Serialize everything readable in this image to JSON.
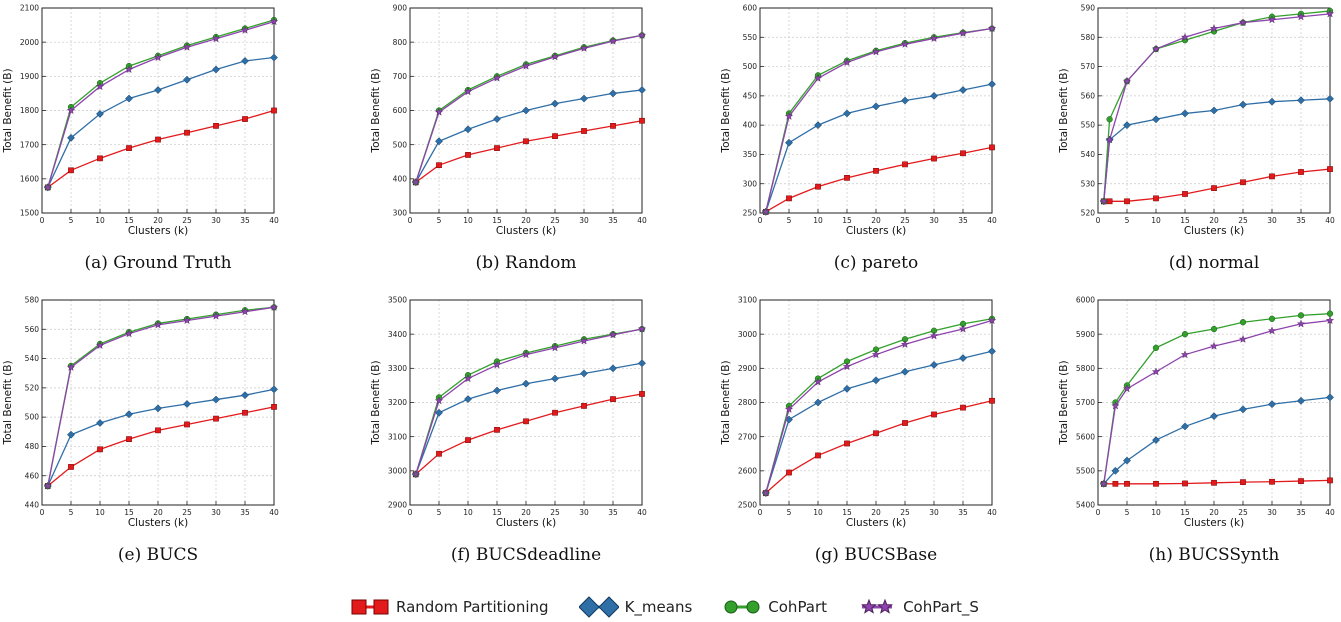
{
  "colors": {
    "random_partitioning": "#e31a1c",
    "k_means": "#2f6fa7",
    "cohpart": "#33a02c",
    "cohpart_s": "#8e44ad",
    "grid": "#c8c8c8"
  },
  "legend": [
    {
      "label": "Random Partitioning",
      "marker": "square",
      "color": "#e31a1c"
    },
    {
      "label": "K_means",
      "marker": "diamond",
      "color": "#2f6fa7"
    },
    {
      "label": "CohPart",
      "marker": "circle",
      "color": "#33a02c"
    },
    {
      "label": "CohPart_S",
      "marker": "star",
      "color": "#8e44ad"
    }
  ],
  "chart_data": [
    {
      "type": "line",
      "caption": "(a) Ground Truth",
      "xlabel": "Clusters (k)",
      "ylabel": "Total Benefit (B)",
      "xlim": [
        0,
        40
      ],
      "ylim": [
        1500,
        2100
      ],
      "xticks": [
        0,
        5,
        10,
        15,
        20,
        25,
        30,
        35,
        40
      ],
      "yticks": [
        1500,
        1600,
        1700,
        1800,
        1900,
        2000,
        2100
      ],
      "grid": true,
      "x": [
        1,
        5,
        10,
        15,
        20,
        25,
        30,
        35,
        40
      ],
      "series": [
        {
          "name": "Random Partitioning",
          "values": [
            1575,
            1625,
            1660,
            1690,
            1715,
            1735,
            1755,
            1775,
            1800
          ]
        },
        {
          "name": "K_means",
          "values": [
            1575,
            1720,
            1790,
            1835,
            1860,
            1890,
            1920,
            1945,
            1955
          ]
        },
        {
          "name": "CohPart",
          "values": [
            1575,
            1810,
            1880,
            1930,
            1960,
            1990,
            2015,
            2040,
            2065
          ]
        },
        {
          "name": "CohPart_S",
          "values": [
            1575,
            1800,
            1870,
            1920,
            1955,
            1985,
            2010,
            2035,
            2060
          ]
        }
      ]
    },
    {
      "type": "line",
      "caption": "(b) Random",
      "xlabel": "Clusters (k)",
      "ylabel": "Total Benefit (B)",
      "xlim": [
        0,
        40
      ],
      "ylim": [
        300,
        900
      ],
      "xticks": [
        0,
        5,
        10,
        15,
        20,
        25,
        30,
        35,
        40
      ],
      "yticks": [
        300,
        400,
        500,
        600,
        700,
        800,
        900
      ],
      "grid": true,
      "x": [
        1,
        5,
        10,
        15,
        20,
        25,
        30,
        35,
        40
      ],
      "series": [
        {
          "name": "Random Partitioning",
          "values": [
            390,
            440,
            470,
            490,
            510,
            525,
            540,
            555,
            570
          ]
        },
        {
          "name": "K_means",
          "values": [
            390,
            510,
            545,
            575,
            600,
            620,
            635,
            650,
            660
          ]
        },
        {
          "name": "CohPart",
          "values": [
            390,
            600,
            660,
            700,
            735,
            760,
            785,
            805,
            820
          ]
        },
        {
          "name": "CohPart_S",
          "values": [
            390,
            595,
            655,
            695,
            730,
            757,
            782,
            803,
            820
          ]
        }
      ]
    },
    {
      "type": "line",
      "caption": "(c) pareto",
      "xlabel": "Clusters (k)",
      "ylabel": "Total Benefit (B)",
      "xlim": [
        0,
        40
      ],
      "ylim": [
        250,
        600
      ],
      "xticks": [
        0,
        5,
        10,
        15,
        20,
        25,
        30,
        35,
        40
      ],
      "yticks": [
        250,
        300,
        350,
        400,
        450,
        500,
        550,
        600
      ],
      "grid": true,
      "x": [
        1,
        5,
        10,
        15,
        20,
        25,
        30,
        35,
        40
      ],
      "series": [
        {
          "name": "Random Partitioning",
          "values": [
            252,
            275,
            295,
            310,
            322,
            333,
            343,
            352,
            362
          ]
        },
        {
          "name": "K_means",
          "values": [
            252,
            370,
            400,
            420,
            432,
            442,
            450,
            460,
            470
          ]
        },
        {
          "name": "CohPart",
          "values": [
            252,
            420,
            485,
            510,
            527,
            540,
            550,
            558,
            565
          ]
        },
        {
          "name": "CohPart_S",
          "values": [
            252,
            415,
            480,
            507,
            525,
            538,
            548,
            557,
            565
          ]
        }
      ]
    },
    {
      "type": "line",
      "caption": "(d) normal",
      "xlabel": "Clusters (k)",
      "ylabel": "Total Benefit (B)",
      "xlim": [
        0,
        40
      ],
      "ylim": [
        520,
        590
      ],
      "xticks": [
        0,
        5,
        10,
        15,
        20,
        25,
        30,
        35,
        40
      ],
      "yticks": [
        520,
        530,
        540,
        550,
        560,
        570,
        580,
        590
      ],
      "grid": true,
      "x": [
        1,
        2,
        5,
        10,
        15,
        20,
        25,
        30,
        35,
        40
      ],
      "series": [
        {
          "name": "Random Partitioning",
          "values": [
            524,
            524,
            524,
            525,
            526.5,
            528.5,
            530.5,
            532.5,
            534,
            535
          ]
        },
        {
          "name": "K_means",
          "values": [
            524,
            545,
            550,
            552,
            554,
            555,
            557,
            558,
            558.5,
            559
          ]
        },
        {
          "name": "CohPart",
          "values": [
            524,
            552,
            565,
            576,
            579,
            582,
            585,
            587,
            588,
            589
          ]
        },
        {
          "name": "CohPart_S",
          "values": [
            524,
            545,
            565,
            576,
            580,
            583,
            585,
            586,
            587,
            588
          ]
        }
      ]
    },
    {
      "type": "line",
      "caption": "(e) BUCS",
      "xlabel": "Clusters (k)",
      "ylabel": "Total Benefit (B)",
      "xlim": [
        0,
        40
      ],
      "ylim": [
        440,
        580
      ],
      "xticks": [
        0,
        5,
        10,
        15,
        20,
        25,
        30,
        35,
        40
      ],
      "yticks": [
        440,
        460,
        480,
        500,
        520,
        540,
        560,
        580
      ],
      "grid": true,
      "x": [
        1,
        5,
        10,
        15,
        20,
        25,
        30,
        35,
        40
      ],
      "series": [
        {
          "name": "Random Partitioning",
          "values": [
            453,
            466,
            478,
            485,
            491,
            495,
            499,
            503,
            507
          ]
        },
        {
          "name": "K_means",
          "values": [
            453,
            488,
            496,
            502,
            506,
            509,
            512,
            515,
            519
          ]
        },
        {
          "name": "CohPart",
          "values": [
            453,
            535,
            550,
            558,
            564,
            567,
            570,
            573,
            575
          ]
        },
        {
          "name": "CohPart_S",
          "values": [
            453,
            534,
            549,
            557,
            563,
            566,
            569,
            572,
            575
          ]
        }
      ]
    },
    {
      "type": "line",
      "caption": "(f) BUCSdeadline",
      "xlabel": "Clusters (k)",
      "ylabel": "Total Benefit (B)",
      "xlim": [
        0,
        40
      ],
      "ylim": [
        2900,
        3500
      ],
      "xticks": [
        0,
        5,
        10,
        15,
        20,
        25,
        30,
        35,
        40
      ],
      "yticks": [
        2900,
        3000,
        3100,
        3200,
        3300,
        3400,
        3500
      ],
      "grid": true,
      "x": [
        1,
        5,
        10,
        15,
        20,
        25,
        30,
        35,
        40
      ],
      "series": [
        {
          "name": "Random Partitioning",
          "values": [
            2990,
            3050,
            3090,
            3120,
            3145,
            3170,
            3190,
            3210,
            3225
          ]
        },
        {
          "name": "K_means",
          "values": [
            2990,
            3170,
            3210,
            3235,
            3255,
            3270,
            3285,
            3300,
            3315
          ]
        },
        {
          "name": "CohPart",
          "values": [
            2990,
            3215,
            3280,
            3320,
            3345,
            3365,
            3385,
            3400,
            3415
          ]
        },
        {
          "name": "CohPart_S",
          "values": [
            2990,
            3205,
            3270,
            3310,
            3340,
            3360,
            3380,
            3398,
            3415
          ]
        }
      ]
    },
    {
      "type": "line",
      "caption": "(g) BUCSBase",
      "xlabel": "Clusters (k)",
      "ylabel": "Total Benefit (B)",
      "xlim": [
        0,
        40
      ],
      "ylim": [
        2500,
        3100
      ],
      "xticks": [
        0,
        5,
        10,
        15,
        20,
        25,
        30,
        35,
        40
      ],
      "yticks": [
        2500,
        2600,
        2700,
        2800,
        2900,
        3000,
        3100
      ],
      "grid": true,
      "x": [
        1,
        5,
        10,
        15,
        20,
        25,
        30,
        35,
        40
      ],
      "series": [
        {
          "name": "Random Partitioning",
          "values": [
            2535,
            2595,
            2645,
            2680,
            2710,
            2740,
            2765,
            2785,
            2805
          ]
        },
        {
          "name": "K_means",
          "values": [
            2535,
            2750,
            2800,
            2840,
            2865,
            2890,
            2910,
            2930,
            2950
          ]
        },
        {
          "name": "CohPart",
          "values": [
            2535,
            2790,
            2870,
            2920,
            2955,
            2985,
            3010,
            3030,
            3045
          ]
        },
        {
          "name": "CohPart_S",
          "values": [
            2535,
            2780,
            2860,
            2905,
            2940,
            2970,
            2995,
            3015,
            3040
          ]
        }
      ]
    },
    {
      "type": "line",
      "caption": "(h) BUCSSynth",
      "xlabel": "Clusters (k)",
      "ylabel": "Total Benefit (B)",
      "xlim": [
        0,
        40
      ],
      "ylim": [
        5400,
        6000
      ],
      "xticks": [
        0,
        5,
        10,
        15,
        20,
        25,
        30,
        35,
        40
      ],
      "yticks": [
        5400,
        5500,
        5600,
        5700,
        5800,
        5900,
        6000
      ],
      "grid": true,
      "x": [
        1,
        3,
        5,
        10,
        15,
        20,
        25,
        30,
        35,
        40
      ],
      "series": [
        {
          "name": "Random Partitioning",
          "values": [
            5462,
            5462,
            5462,
            5462,
            5463,
            5465,
            5467,
            5468,
            5470,
            5472
          ]
        },
        {
          "name": "K_means",
          "values": [
            5462,
            5500,
            5530,
            5590,
            5630,
            5660,
            5680,
            5695,
            5705,
            5715
          ]
        },
        {
          "name": "CohPart",
          "values": [
            5462,
            5700,
            5750,
            5860,
            5900,
            5915,
            5935,
            5945,
            5955,
            5960
          ]
        },
        {
          "name": "CohPart_S",
          "values": [
            5462,
            5690,
            5740,
            5790,
            5840,
            5865,
            5885,
            5910,
            5930,
            5940
          ]
        }
      ]
    }
  ]
}
